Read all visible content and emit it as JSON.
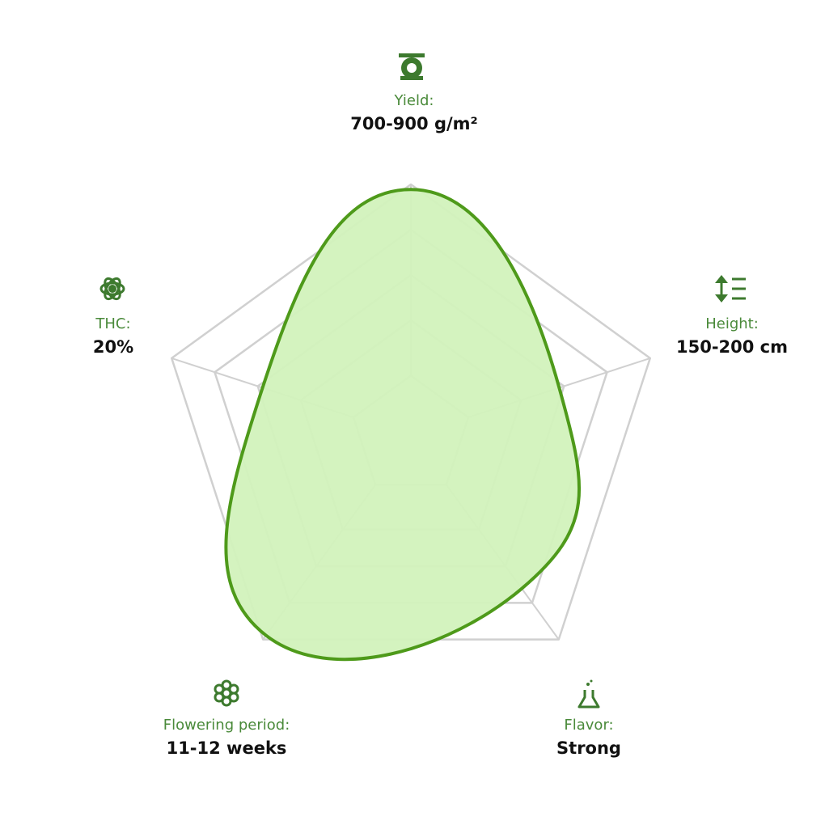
{
  "chart_data": {
    "type": "radar",
    "categories": [
      "Yield:",
      "Height:",
      "Flavor:",
      "Flowering period:",
      "THC:"
    ],
    "category_details": [
      "700-900 g/m²",
      "150-200 cm",
      "Strong",
      "11-12 weeks",
      "20%"
    ],
    "values": [
      4.9,
      3.1,
      3.75,
      4.9,
      3.1
    ],
    "ylim": [
      0,
      5
    ],
    "yticks": [
      1.2,
      2.3,
      3.2,
      4.1,
      5
    ],
    "color": "#4e9a1a",
    "fill": "#d2f2bc"
  }
}
